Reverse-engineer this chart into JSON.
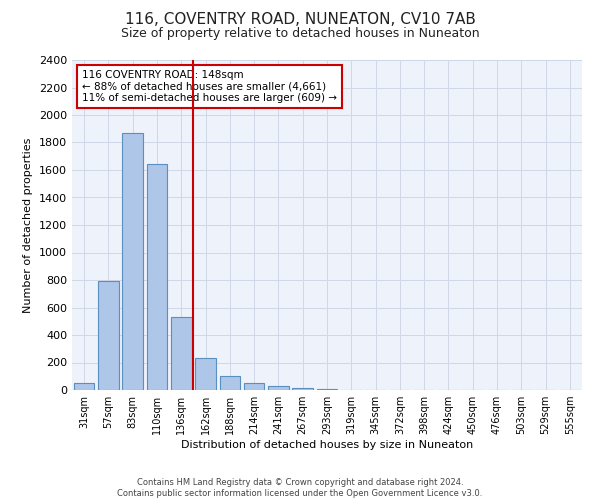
{
  "title": "116, COVENTRY ROAD, NUNEATON, CV10 7AB",
  "subtitle": "Size of property relative to detached houses in Nuneaton",
  "xlabel": "Distribution of detached houses by size in Nuneaton",
  "ylabel": "Number of detached properties",
  "footer_line1": "Contains HM Land Registry data © Crown copyright and database right 2024.",
  "footer_line2": "Contains public sector information licensed under the Open Government Licence v3.0.",
  "categories": [
    "31sqm",
    "57sqm",
    "83sqm",
    "110sqm",
    "136sqm",
    "162sqm",
    "188sqm",
    "214sqm",
    "241sqm",
    "267sqm",
    "293sqm",
    "319sqm",
    "345sqm",
    "372sqm",
    "398sqm",
    "424sqm",
    "450sqm",
    "476sqm",
    "503sqm",
    "529sqm",
    "555sqm"
  ],
  "values": [
    50,
    790,
    1870,
    1640,
    530,
    235,
    105,
    50,
    30,
    15,
    5,
    0,
    0,
    0,
    0,
    0,
    0,
    0,
    0,
    0,
    0
  ],
  "bar_color": "#aec6e8",
  "bar_edge_color": "#5a8fc2",
  "grid_color": "#d0d8e8",
  "background_color": "#ffffff",
  "plot_background_color": "#eef2fa",
  "vline_color": "#cc0000",
  "annotation_text_line1": "116 COVENTRY ROAD: 148sqm",
  "annotation_text_line2": "← 88% of detached houses are smaller (4,661)",
  "annotation_text_line3": "11% of semi-detached houses are larger (609) →",
  "annotation_box_color": "#cc0000",
  "vline_x_index": 4,
  "ylim": [
    0,
    2400
  ],
  "yticks": [
    0,
    200,
    400,
    600,
    800,
    1000,
    1200,
    1400,
    1600,
    1800,
    2000,
    2200,
    2400
  ]
}
